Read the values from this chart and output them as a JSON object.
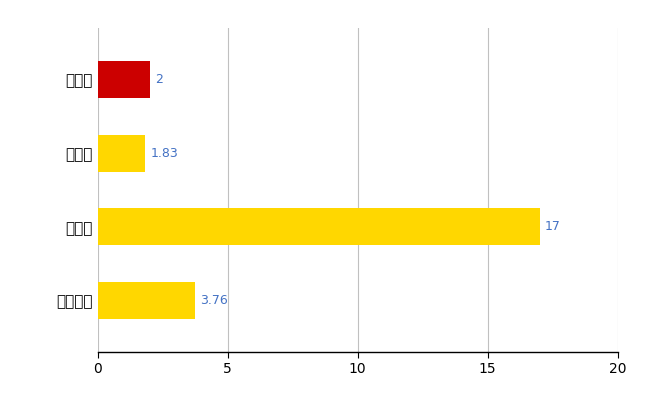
{
  "categories": [
    "全国平均",
    "県最大",
    "県平均",
    "東御市"
  ],
  "values": [
    3.76,
    17,
    1.83,
    2
  ],
  "bar_colors": [
    "#FFD700",
    "#FFD700",
    "#FFD700",
    "#CC0000"
  ],
  "value_labels": [
    "3.76",
    "17",
    "1.83",
    "2"
  ],
  "label_color": "#4472C4",
  "xlim": [
    0,
    20
  ],
  "xticks": [
    0,
    5,
    10,
    15,
    20
  ],
  "grid_color": "#C0C0C0",
  "background_color": "#FFFFFF",
  "bar_height": 0.5
}
